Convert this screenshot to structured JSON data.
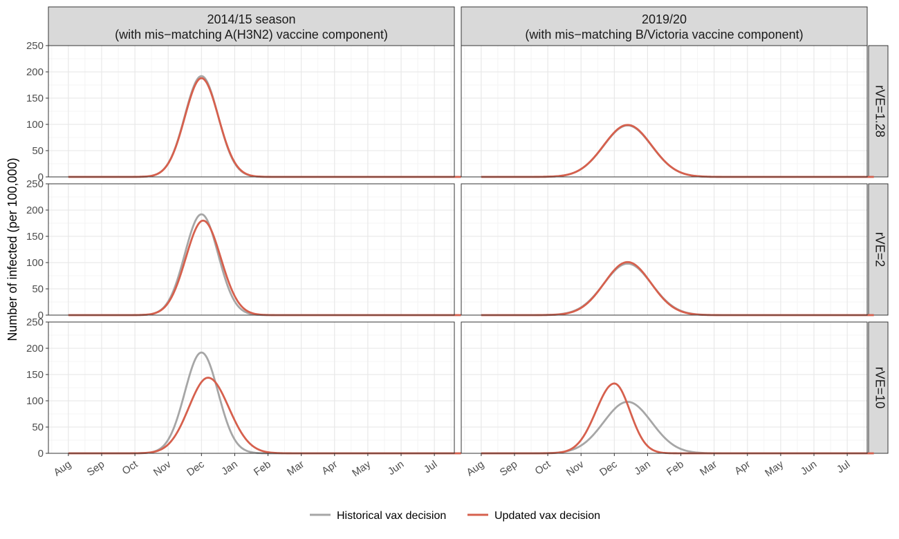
{
  "chart_data": {
    "type": "line",
    "ylabel": "Number of infected (per 100,000)",
    "xlabel": "",
    "ylim": [
      0,
      250
    ],
    "y_ticks": [
      "0",
      "50",
      "100",
      "150",
      "200",
      "250"
    ],
    "x_tick_labels": [
      "Aug",
      "Sep",
      "Oct",
      "Nov",
      "Dec",
      "Jan",
      "Feb",
      "Mar",
      "Apr",
      "May",
      "Jun",
      "Jul"
    ],
    "grid": true,
    "legend_position": "bottom",
    "columns": [
      {
        "title": "2014/15 season",
        "subtitle": "(with mis−matching A(H3N2) vaccine component)"
      },
      {
        "title": "2019/20",
        "subtitle": "(with mis−matching B/Victoria vaccine component)"
      }
    ],
    "rows": [
      "rVE=1.28",
      "rVE=2",
      "rVE=10"
    ],
    "series_meta": [
      {
        "name": "Historical vax decision",
        "color": "#a6a6a6"
      },
      {
        "name": "Updated vax decision",
        "color": "#d6604d"
      }
    ],
    "panels": [
      {
        "column": 0,
        "row": 0,
        "series": [
          {
            "name": "Historical vax decision",
            "peak": 192,
            "peak_month": 4.0,
            "width_before": 0.5,
            "width_after": 0.5
          },
          {
            "name": "Updated vax decision",
            "peak": 188,
            "peak_month": 4.0,
            "width_before": 0.5,
            "width_after": 0.51
          }
        ]
      },
      {
        "column": 1,
        "row": 0,
        "series": [
          {
            "name": "Historical vax decision",
            "peak": 98,
            "peak_month": 4.4,
            "width_before": 0.72,
            "width_after": 0.72
          },
          {
            "name": "Updated vax decision",
            "peak": 99,
            "peak_month": 4.4,
            "width_before": 0.72,
            "width_after": 0.72
          }
        ]
      },
      {
        "column": 0,
        "row": 1,
        "series": [
          {
            "name": "Historical vax decision",
            "peak": 192,
            "peak_month": 4.0,
            "width_before": 0.5,
            "width_after": 0.5
          },
          {
            "name": "Updated vax decision",
            "peak": 180,
            "peak_month": 4.05,
            "width_before": 0.52,
            "width_after": 0.53
          }
        ]
      },
      {
        "column": 1,
        "row": 1,
        "series": [
          {
            "name": "Historical vax decision",
            "peak": 98,
            "peak_month": 4.4,
            "width_before": 0.72,
            "width_after": 0.72
          },
          {
            "name": "Updated vax decision",
            "peak": 101,
            "peak_month": 4.4,
            "width_before": 0.7,
            "width_after": 0.7
          }
        ]
      },
      {
        "column": 0,
        "row": 2,
        "series": [
          {
            "name": "Historical vax decision",
            "peak": 192,
            "peak_month": 4.0,
            "width_before": 0.5,
            "width_after": 0.5
          },
          {
            "name": "Updated vax decision",
            "peak": 144,
            "peak_month": 4.2,
            "width_before": 0.58,
            "width_after": 0.62
          }
        ]
      },
      {
        "column": 1,
        "row": 2,
        "series": [
          {
            "name": "Historical vax decision",
            "peak": 98,
            "peak_month": 4.4,
            "width_before": 0.72,
            "width_after": 0.72
          },
          {
            "name": "Updated vax decision",
            "peak": 133,
            "peak_month": 4.0,
            "width_before": 0.55,
            "width_after": 0.47
          }
        ]
      }
    ]
  }
}
